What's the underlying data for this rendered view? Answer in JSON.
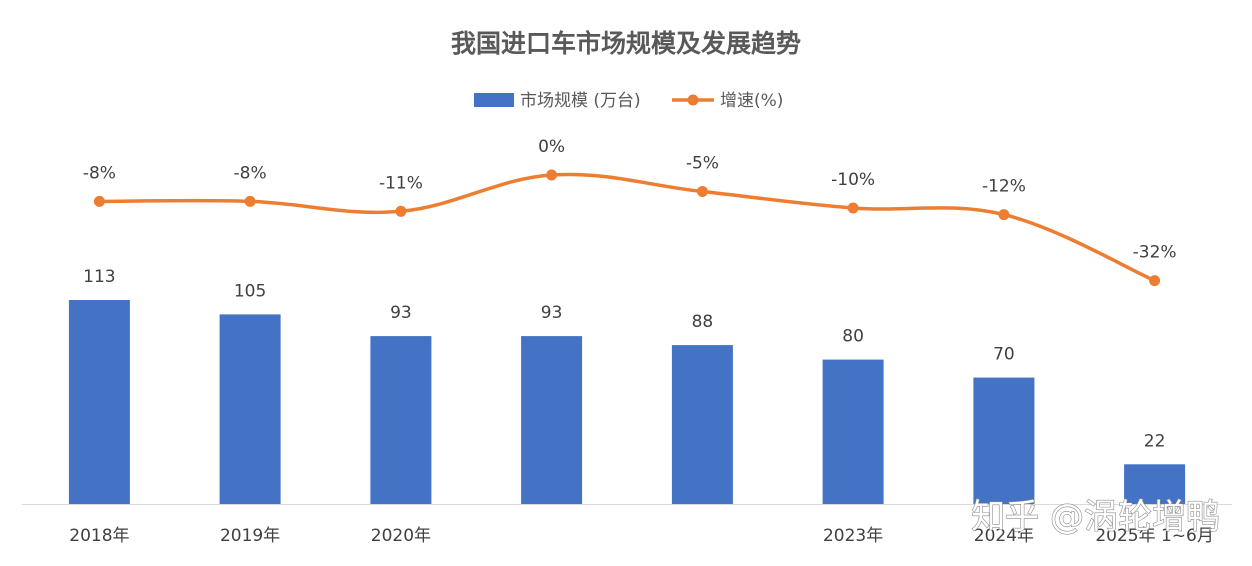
{
  "chart_data": {
    "type": "bar+line",
    "title": "我国进口车市场规模及发展趋势",
    "categories": [
      "2018年",
      "2019年",
      "2020年",
      "",
      "",
      "2023年",
      "2024年",
      "2025年 1~6月"
    ],
    "series": [
      {
        "name": "市场规模 (万台)",
        "type": "bar",
        "color": "#4472C4",
        "values": [
          113,
          105,
          93,
          93,
          88,
          80,
          70,
          22
        ],
        "labels": [
          "113",
          "105",
          "93",
          "93",
          "88",
          "80",
          "70",
          "22"
        ]
      },
      {
        "name": "增速(%)",
        "type": "line",
        "color": "#ED7D31",
        "values": [
          -8,
          -8,
          -11,
          0,
          -5,
          -10,
          -12,
          -32
        ],
        "labels": [
          "-8%",
          "-8%",
          "-11%",
          "0%",
          "-5%",
          "-10%",
          "-12%",
          "-32%"
        ]
      }
    ],
    "legend_position": "top-center",
    "grid": false
  },
  "watermark": {
    "text": "知乎 @涡轮增鸭"
  }
}
